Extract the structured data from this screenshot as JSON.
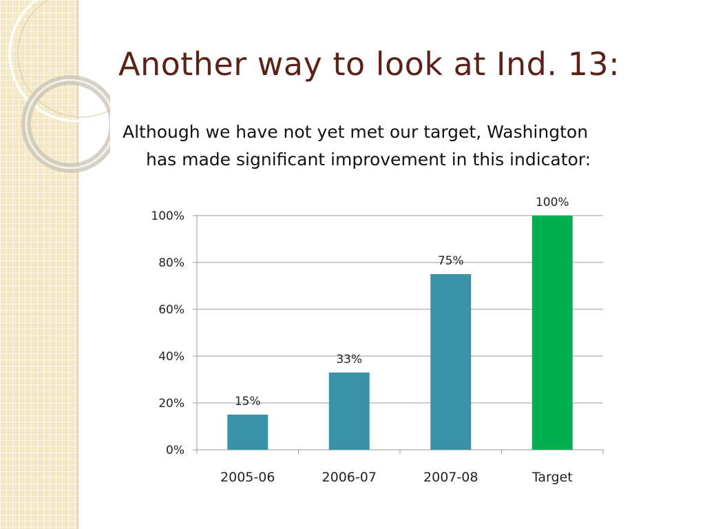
{
  "slide": {
    "title": "Another way to look at Ind. 13:",
    "subtitle_line1": "Although we have not yet met our target, Washington",
    "subtitle_line2": "has made significant improvement in this indicator:"
  },
  "colors": {
    "title": "#5a2218",
    "bar_actual": "#3a91a8",
    "bar_target": "#00b050",
    "gridline": "#9a9a9a",
    "side_panel": "#f3e8c6"
  },
  "chart_data": {
    "type": "bar",
    "categories": [
      "2005-06",
      "2006-07",
      "2007-08",
      "Target"
    ],
    "values": [
      15,
      33,
      75,
      100
    ],
    "data_labels": [
      "15%",
      "33%",
      "75%",
      "100%"
    ],
    "bar_colors": [
      "#3a91a8",
      "#3a91a8",
      "#3a91a8",
      "#00b050"
    ],
    "ylim": [
      0,
      100
    ],
    "yticks": [
      0,
      20,
      40,
      60,
      80,
      100
    ],
    "ytick_labels": [
      "0%",
      "20%",
      "40%",
      "60%",
      "80%",
      "100%"
    ],
    "grid": true,
    "legend": "none"
  }
}
